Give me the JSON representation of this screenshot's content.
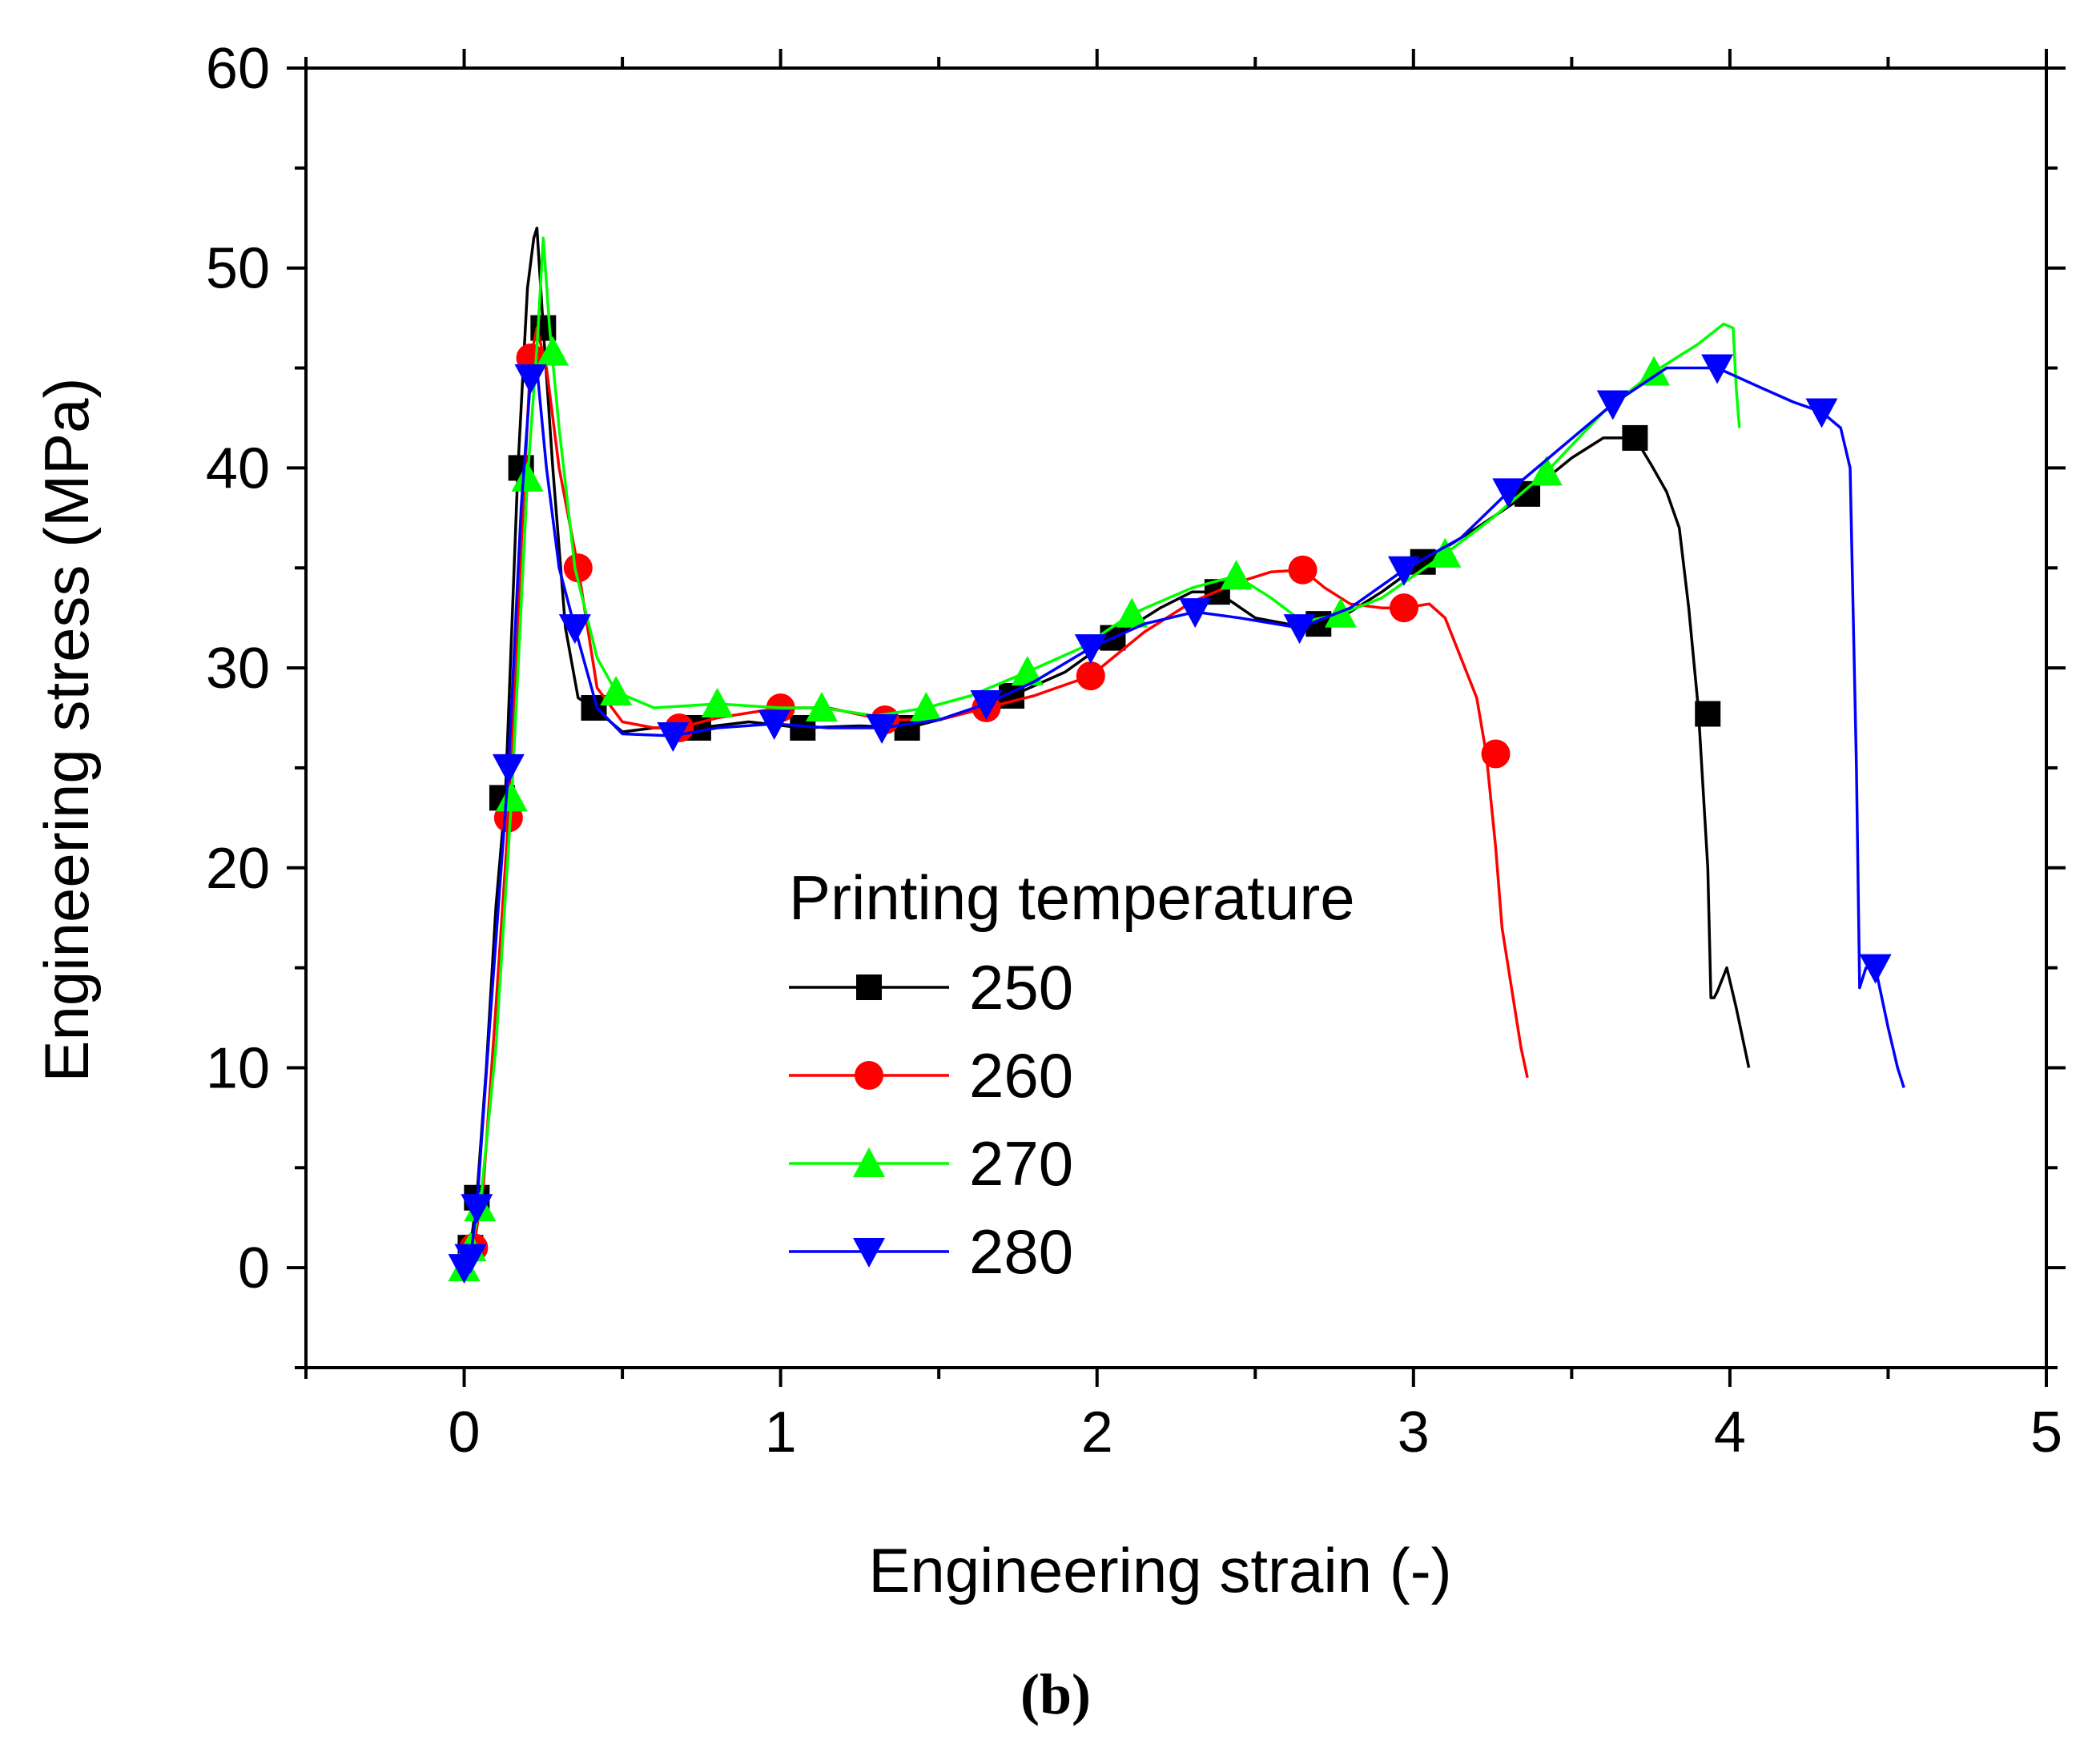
{
  "chart_data": {
    "type": "line",
    "title": "",
    "xlabel": "Engineering strain (-)",
    "ylabel": "Engineering stress (MPa)",
    "xlim": [
      -0.5,
      5
    ],
    "ylim": [
      -5,
      60
    ],
    "x_ticks": [
      "0",
      "1",
      "2",
      "3",
      "4",
      "5"
    ],
    "y_ticks": [
      "0",
      "10",
      "20",
      "30",
      "40",
      "50",
      "60"
    ],
    "legend_title": "Printing temperature",
    "panel_label": "(b)",
    "series": [
      {
        "name": "250",
        "color": "#000000",
        "marker": "square",
        "x": [
          0,
          0.02,
          0.04,
          0.07,
          0.1,
          0.13,
          0.17,
          0.2,
          0.22,
          0.23,
          0.25,
          0.28,
          0.32,
          0.36,
          0.41,
          0.5,
          0.6,
          0.74,
          0.9,
          1.07,
          1.25,
          1.4,
          1.55,
          1.73,
          1.9,
          2.05,
          2.2,
          2.3,
          2.38,
          2.5,
          2.6,
          2.7,
          2.8,
          2.9,
          3.03,
          3.2,
          3.36,
          3.5,
          3.6,
          3.7,
          3.75,
          3.8,
          3.84,
          3.87,
          3.9,
          3.93,
          3.94,
          3.95,
          3.96,
          3.99,
          4.02,
          4.06
        ],
        "y": [
          0,
          1,
          3.5,
          10,
          18,
          23.5,
          40,
          49,
          51.5,
          52,
          47,
          40,
          32,
          28.5,
          28,
          26.8,
          27,
          27,
          27.3,
          27,
          27.1,
          27,
          27.6,
          28.6,
          29.8,
          31.5,
          33,
          33.8,
          33.8,
          32.5,
          32.2,
          32.2,
          32.8,
          33.8,
          35.3,
          37,
          38.7,
          40.5,
          41.5,
          41.5,
          40.2,
          38.8,
          37,
          33,
          28,
          20,
          13.5,
          13.5,
          13.8,
          15,
          13,
          10
        ],
        "marker_x": [
          0.02,
          0.04,
          0.12,
          0.18,
          0.25,
          0.41,
          0.74,
          1.07,
          1.4,
          1.73,
          2.05,
          2.38,
          2.7,
          3.03,
          3.36,
          3.7,
          3.93
        ],
        "marker_y": [
          1,
          3.5,
          23.5,
          40,
          47,
          28,
          27,
          27,
          27,
          28.6,
          31.5,
          33.8,
          32.2,
          35.3,
          38.7,
          41.5,
          27.7
        ]
      },
      {
        "name": "260",
        "color": "#ff0000",
        "marker": "circle",
        "x": [
          0,
          0.03,
          0.06,
          0.1,
          0.14,
          0.18,
          0.21,
          0.23,
          0.26,
          0.3,
          0.36,
          0.42,
          0.5,
          0.6,
          0.68,
          0.8,
          1.0,
          1.15,
          1.33,
          1.5,
          1.65,
          1.8,
          1.98,
          2.15,
          2.3,
          2.45,
          2.55,
          2.65,
          2.72,
          2.8,
          2.9,
          2.97,
          3.05,
          3.1,
          3.15,
          3.2,
          3.23,
          3.26,
          3.28,
          3.3,
          3.32,
          3.34,
          3.36
        ],
        "y": [
          0,
          1,
          4,
          13,
          22.5,
          36,
          45.5,
          47,
          45,
          40,
          35,
          29,
          27.3,
          27,
          27,
          27.5,
          28,
          28,
          27.4,
          27.4,
          28,
          28.6,
          29.6,
          31.8,
          33.3,
          34.3,
          34.8,
          34.9,
          34,
          33.2,
          33,
          33,
          33.2,
          32.5,
          30.5,
          28.5,
          25.7,
          21,
          17,
          15,
          13,
          11,
          9.5
        ],
        "marker_x": [
          0.03,
          0.14,
          0.21,
          0.36,
          0.68,
          1.0,
          1.33,
          1.65,
          1.98,
          2.65,
          2.97,
          3.26
        ],
        "marker_y": [
          1,
          22.5,
          45.5,
          35,
          27,
          28,
          27.4,
          28,
          29.6,
          34.9,
          33,
          25.7
        ]
      },
      {
        "name": "270",
        "color": "#00ff00",
        "marker": "triangle-up",
        "x": [
          0,
          0.02,
          0.05,
          0.1,
          0.15,
          0.2,
          0.23,
          0.25,
          0.27,
          0.3,
          0.35,
          0.42,
          0.48,
          0.6,
          0.8,
          1.0,
          1.13,
          1.3,
          1.46,
          1.6,
          1.78,
          1.95,
          2.11,
          2.3,
          2.44,
          2.55,
          2.65,
          2.77,
          2.9,
          3.1,
          3.25,
          3.42,
          3.6,
          3.76,
          3.9,
          3.98,
          4.01,
          4.02,
          4.03
        ],
        "y": [
          0,
          1,
          3,
          11,
          23.5,
          39.5,
          46,
          51.5,
          47,
          42,
          35,
          30.5,
          28.8,
          28,
          28.2,
          28,
          28,
          27.6,
          28,
          28.6,
          29.8,
          31,
          32.7,
          34,
          34.6,
          33.5,
          32.3,
          32.7,
          33.5,
          35.7,
          37.5,
          39.8,
          42.8,
          44.8,
          46.2,
          47.2,
          47,
          44,
          42
        ],
        "marker_x": [
          0,
          0.02,
          0.05,
          0.15,
          0.2,
          0.28,
          0.48,
          0.8,
          1.13,
          1.46,
          1.78,
          2.11,
          2.44,
          2.77,
          3.1,
          3.42,
          3.76
        ],
        "marker_y": [
          0,
          1,
          3,
          23.5,
          39.5,
          45.8,
          28.8,
          28.2,
          28,
          28,
          29.8,
          32.7,
          34.6,
          32.7,
          35.7,
          39.8,
          44.8
        ]
      },
      {
        "name": "280",
        "color": "#0000ff",
        "marker": "triangle-down",
        "x": [
          0,
          0.02,
          0.04,
          0.08,
          0.14,
          0.18,
          0.21,
          0.23,
          0.26,
          0.3,
          0.35,
          0.42,
          0.5,
          0.66,
          0.8,
          0.98,
          1.15,
          1.32,
          1.5,
          1.65,
          1.8,
          1.98,
          2.15,
          2.31,
          2.45,
          2.64,
          2.8,
          2.97,
          3.15,
          3.3,
          3.45,
          3.63,
          3.8,
          3.96,
          4.1,
          4.2,
          4.29,
          4.35,
          4.38,
          4.4,
          4.41,
          4.42,
          4.43,
          4.46,
          4.5,
          4.53,
          4.55
        ],
        "y": [
          0,
          0.5,
          3,
          12,
          25,
          38,
          44.5,
          45,
          40,
          35,
          32,
          28,
          26.7,
          26.6,
          27,
          27.2,
          27,
          27,
          27.4,
          28.2,
          29.3,
          31,
          32.2,
          32.8,
          32.5,
          32,
          33,
          34.9,
          36.5,
          38.8,
          40.8,
          43.2,
          45,
          45,
          44,
          43.3,
          42.8,
          42,
          40,
          25,
          14,
          14.5,
          15,
          15,
          12,
          10,
          9
        ],
        "marker_x": [
          0,
          0.02,
          0.04,
          0.14,
          0.21,
          0.35,
          0.66,
          0.98,
          1.32,
          1.65,
          1.98,
          2.31,
          2.64,
          2.97,
          3.3,
          3.63,
          3.96,
          4.29,
          4.46
        ],
        "marker_y": [
          0,
          0.5,
          3,
          25,
          44.5,
          32,
          26.6,
          27.2,
          27,
          28.2,
          31,
          32.8,
          32,
          34.9,
          38.8,
          43.2,
          45,
          42.8,
          15
        ]
      }
    ]
  }
}
